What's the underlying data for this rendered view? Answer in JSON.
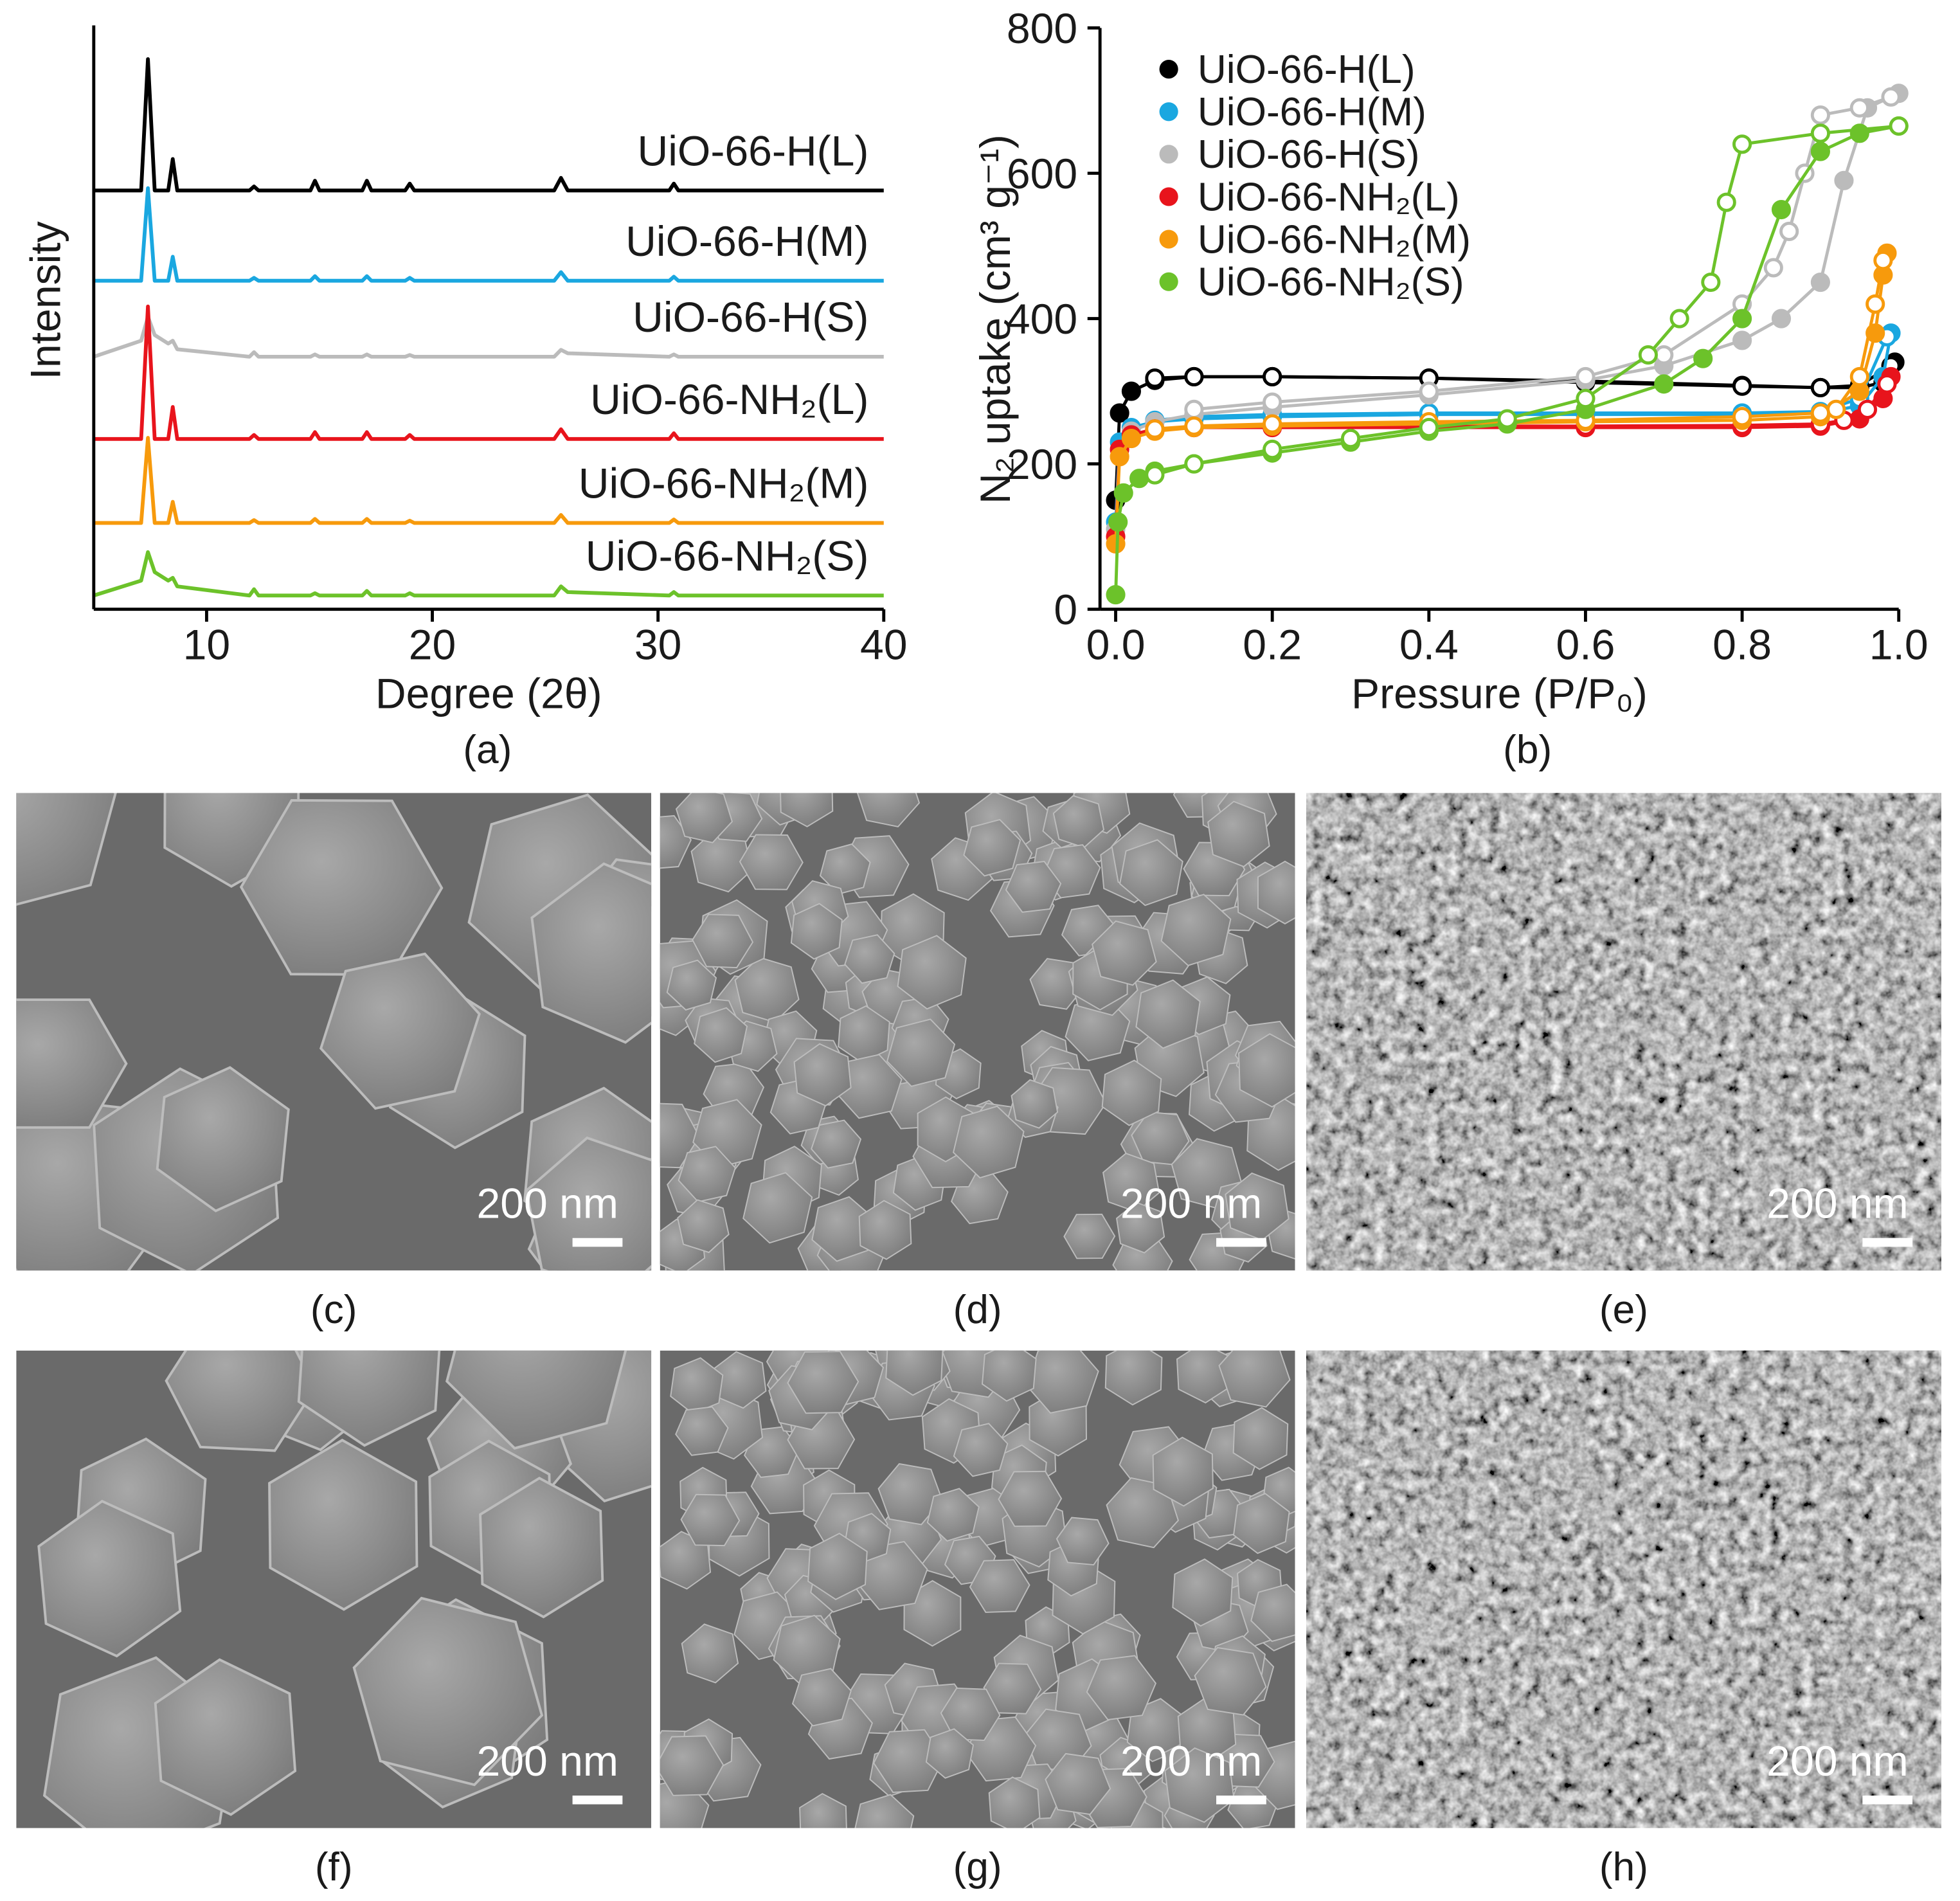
{
  "chart_data": [
    {
      "type": "line",
      "caption": "(a)",
      "xlabel": "Degree (2θ)",
      "ylabel": "Intensity",
      "legend": "inline",
      "x": [
        5,
        7.1,
        7.4,
        7.7,
        8.3,
        8.5,
        8.7,
        11.9,
        12.1,
        12.3,
        14.6,
        14.8,
        15.0,
        16.9,
        17.1,
        17.3,
        18.8,
        19.0,
        19.2,
        25.4,
        25.7,
        26.0,
        30.5,
        30.7,
        30.9,
        40
      ],
      "xlim": [
        5,
        40
      ],
      "xticks": [
        10,
        20,
        30,
        40
      ],
      "ylim": [
        0,
        100
      ],
      "series": [
        {
          "name": "UiO-66-H(L)",
          "color": "#000000",
          "values": [
            73.3,
            73.3,
            96.3,
            73.3,
            73.3,
            78.8,
            73.3,
            73.3,
            74,
            73.3,
            73.3,
            75,
            73.3,
            73.3,
            75,
            73.3,
            73.3,
            74.5,
            73.3,
            73.3,
            75.5,
            73.3,
            73.3,
            74.5,
            73.3,
            73.3
          ]
        },
        {
          "name": "UiO-66-H(M)",
          "color": "#1aa7e0",
          "values": [
            57.5,
            57.5,
            73.7,
            57.5,
            57.5,
            61.7,
            57.5,
            57.5,
            58,
            57.5,
            57.5,
            58.3,
            57.5,
            57.5,
            58.3,
            57.5,
            57.5,
            58,
            57.5,
            57.5,
            59,
            57.5,
            57.5,
            58.2,
            57.5,
            57.5
          ]
        },
        {
          "name": "UiO-66-H(S)",
          "color": "#bbbbbb",
          "values": [
            44.2,
            47,
            51.2,
            48,
            46.5,
            47,
            45.5,
            44.2,
            45,
            44.2,
            44.2,
            44.6,
            44.2,
            44.2,
            44.6,
            44.2,
            44.2,
            44.5,
            44.2,
            44.2,
            45.4,
            44.8,
            44.2,
            44.6,
            44.2,
            44.2
          ]
        },
        {
          "name": "UiO-66-NH₂(L)",
          "color": "#e8141c",
          "values": [
            29.8,
            29.8,
            53,
            29.8,
            29.8,
            35.4,
            29.8,
            29.8,
            30.5,
            29.8,
            29.8,
            31,
            29.8,
            29.8,
            31,
            29.8,
            29.8,
            30.5,
            29.8,
            29.8,
            31.5,
            29.8,
            29.8,
            30.8,
            29.8,
            29.8
          ]
        },
        {
          "name": "UiO-66-NH₂(M)",
          "color": "#f79a0c",
          "values": [
            15.1,
            15.1,
            30,
            15.1,
            15.1,
            18.8,
            15.1,
            15.1,
            15.6,
            15.1,
            15.1,
            15.8,
            15.1,
            15.1,
            15.8,
            15.1,
            15.1,
            15.5,
            15.1,
            15.1,
            16.5,
            15.1,
            15.1,
            15.7,
            15.1,
            15.1
          ]
        },
        {
          "name": "UiO-66-NH₂(S)",
          "color": "#6cc22a",
          "values": [
            2.4,
            5,
            10,
            6.5,
            5,
            5.5,
            4,
            2.4,
            3.5,
            2.4,
            2.4,
            2.8,
            2.4,
            2.4,
            3.2,
            2.4,
            2.4,
            2.8,
            2.4,
            2.4,
            4,
            3,
            2.4,
            3,
            2.4,
            2.4
          ]
        }
      ]
    },
    {
      "type": "line",
      "markers": true,
      "caption": "(b)",
      "xlabel": "Pressure (P/P₀)",
      "ylabel": "N₂ uptake (cm³ g⁻¹)",
      "legend": "upper left",
      "xlim": [
        -0.02,
        1.0
      ],
      "xticks": [
        {
          "value": 0,
          "label": "0.0"
        },
        0.2,
        0.4,
        0.6,
        0.8,
        {
          "value": 1,
          "label": "1.0"
        }
      ],
      "ylim": [
        0,
        800
      ],
      "yticks": [
        0,
        200,
        400,
        600,
        800
      ],
      "series": [
        {
          "name": "UiO-66-H(L)",
          "color": "#000000",
          "x": [
            0,
            0.005,
            0.02,
            0.05,
            0.1,
            0.2,
            0.4,
            0.6,
            0.8,
            0.9,
            0.95,
            0.98,
            0.995
          ],
          "values": [
            150,
            270,
            300,
            315,
            320,
            320,
            318,
            314,
            308,
            305,
            305,
            312,
            340
          ],
          "x_desorption": [
            0.99,
            0.95,
            0.9,
            0.8,
            0.6,
            0.4,
            0.2,
            0.1,
            0.05
          ],
          "values_desorption": [
            335,
            308,
            305,
            307,
            312,
            318,
            320,
            320,
            318
          ]
        },
        {
          "name": "UiO-66-H(M)",
          "color": "#1aa7e0",
          "x": [
            0,
            0.005,
            0.02,
            0.05,
            0.1,
            0.2,
            0.4,
            0.6,
            0.8,
            0.9,
            0.95,
            0.98,
            0.99
          ],
          "values": [
            120,
            230,
            250,
            258,
            262,
            265,
            268,
            268,
            268,
            270,
            280,
            320,
            380
          ],
          "x_desorption": [
            0.985,
            0.95,
            0.9,
            0.8,
            0.6,
            0.4,
            0.2,
            0.1,
            0.05
          ],
          "values_desorption": [
            375,
            290,
            272,
            270,
            270,
            270,
            268,
            265,
            260
          ]
        },
        {
          "name": "UiO-66-H(S)",
          "color": "#bbbbbb",
          "x": [
            0,
            0.005,
            0.02,
            0.05,
            0.1,
            0.2,
            0.4,
            0.6,
            0.7,
            0.8,
            0.85,
            0.9,
            0.93,
            0.96,
            1.0
          ],
          "values": [
            110,
            220,
            245,
            258,
            268,
            278,
            295,
            315,
            335,
            370,
            400,
            450,
            590,
            690,
            710
          ],
          "x_desorption": [
            0.99,
            0.95,
            0.9,
            0.88,
            0.86,
            0.84,
            0.8,
            0.7,
            0.6,
            0.4,
            0.2,
            0.1
          ],
          "values_desorption": [
            705,
            690,
            680,
            600,
            520,
            470,
            420,
            350,
            320,
            300,
            285,
            275
          ]
        },
        {
          "name": "UiO-66-NH₂(L)",
          "color": "#e8141c",
          "x": [
            0,
            0.005,
            0.02,
            0.05,
            0.1,
            0.2,
            0.4,
            0.6,
            0.8,
            0.9,
            0.95,
            0.98,
            0.99
          ],
          "values": [
            100,
            220,
            240,
            248,
            250,
            250,
            250,
            250,
            250,
            252,
            262,
            290,
            320
          ],
          "x_desorption": [
            0.985,
            0.96,
            0.93,
            0.9,
            0.8,
            0.6,
            0.4,
            0.2,
            0.1,
            0.05
          ],
          "values_desorption": [
            310,
            275,
            260,
            255,
            253,
            252,
            252,
            252,
            250,
            248
          ]
        },
        {
          "name": "UiO-66-NH₂(M)",
          "color": "#f79a0c",
          "x": [
            0,
            0.005,
            0.02,
            0.05,
            0.1,
            0.2,
            0.4,
            0.6,
            0.8,
            0.9,
            0.95,
            0.97,
            0.98,
            0.985
          ],
          "values": [
            90,
            210,
            235,
            245,
            250,
            252,
            255,
            258,
            260,
            265,
            300,
            380,
            460,
            490
          ],
          "x_desorption": [
            0.98,
            0.97,
            0.95,
            0.92,
            0.9,
            0.8,
            0.6,
            0.4,
            0.2,
            0.1,
            0.05
          ],
          "values_desorption": [
            480,
            420,
            320,
            275,
            270,
            265,
            260,
            258,
            255,
            252,
            248
          ]
        },
        {
          "name": "UiO-66-NH₂(S)",
          "color": "#6cc22a",
          "x": [
            0,
            0.003,
            0.01,
            0.03,
            0.05,
            0.1,
            0.2,
            0.3,
            0.4,
            0.5,
            0.6,
            0.7,
            0.75,
            0.8,
            0.85,
            0.9,
            0.95,
            1.0
          ],
          "values": [
            20,
            120,
            160,
            180,
            190,
            200,
            215,
            230,
            245,
            255,
            275,
            310,
            345,
            400,
            550,
            630,
            655,
            665
          ],
          "x_desorption": [
            1.0,
            0.9,
            0.8,
            0.78,
            0.76,
            0.72,
            0.68,
            0.6,
            0.5,
            0.4,
            0.3,
            0.2,
            0.1,
            0.05
          ],
          "values_desorption": [
            665,
            655,
            640,
            560,
            450,
            400,
            350,
            290,
            262,
            250,
            235,
            220,
            200,
            185
          ]
        }
      ]
    }
  ],
  "images": [
    {
      "caption": "(c)",
      "scale_bar": "200 nm"
    },
    {
      "caption": "(d)",
      "scale_bar": "200 nm"
    },
    {
      "caption": "(e)",
      "scale_bar": "200 nm"
    },
    {
      "caption": "(f)",
      "scale_bar": "200 nm"
    },
    {
      "caption": "(g)",
      "scale_bar": "200 nm"
    },
    {
      "caption": "(h)",
      "scale_bar": "200 nm"
    }
  ]
}
